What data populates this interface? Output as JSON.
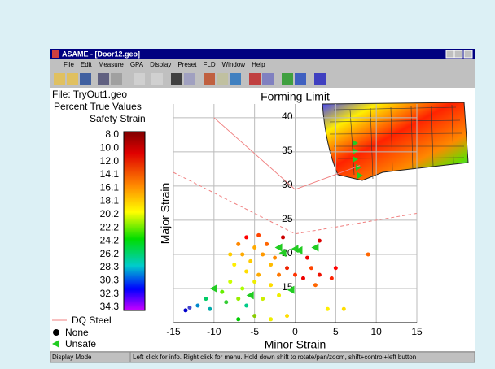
{
  "window": {
    "title": "ASAME - [Door12.geo]"
  },
  "menu": {
    "items": [
      "File",
      "Edit",
      "Measure",
      "GPA",
      "Display",
      "Preset",
      "FLD",
      "Window",
      "Help"
    ]
  },
  "sidebar": {
    "file": "File: TryOut1.geo",
    "mode": "Percent True Values",
    "scale_title": "Safety Strain",
    "scale_labels": [
      "8.0",
      "10.0",
      "12.0",
      "14.1",
      "16.1",
      "18.1",
      "20.2",
      "22.2",
      "24.2",
      "26.2",
      "28.3",
      "30.3",
      "32.3",
      "34.3"
    ]
  },
  "plot": {
    "title": "Forming Limit",
    "xlabel": "Minor Strain",
    "ylabel": "Major Strain",
    "xlim": [
      -15,
      15
    ],
    "ylim": [
      10,
      42
    ],
    "xticks": [
      -15,
      -10,
      -5,
      0,
      5,
      10,
      15
    ],
    "yticks": [
      15,
      20,
      25,
      30,
      35,
      40
    ],
    "curve": {
      "name": "DQ Steel",
      "color": "#f08080",
      "x": [
        -10,
        0,
        8
      ],
      "y": [
        40,
        29.5,
        33
      ],
      "dashed_x": [
        -15,
        0,
        15
      ],
      "dashed_y": [
        32,
        23,
        26
      ]
    },
    "series": [
      {
        "name": "None",
        "marker": "circle",
        "x": [
          -6,
          -4.5,
          -7,
          -5,
          -3.5,
          -8,
          -6.5,
          -4,
          -2.5,
          -5.5,
          -7.5,
          -3,
          -6,
          -4.5,
          -2,
          -1,
          0,
          1,
          1.5,
          2,
          3,
          2.5,
          4.5,
          5,
          9,
          3,
          -1.5,
          -8,
          -5,
          -3,
          -6.5,
          -9,
          -7,
          -4,
          -2,
          -8.5,
          -6,
          -11,
          -12,
          -13,
          -13.5,
          -10.5,
          -5,
          -3,
          -1,
          4,
          6,
          -7
        ],
        "y": [
          22.5,
          22.8,
          21.5,
          21,
          21.5,
          20,
          20,
          20,
          19.5,
          19,
          18.5,
          18.5,
          17.5,
          17,
          17,
          18,
          17,
          16.5,
          19.5,
          18,
          17,
          15.5,
          16.5,
          18,
          20,
          22,
          22.5,
          16,
          16,
          15.5,
          15,
          14.5,
          13.5,
          13.5,
          14,
          13,
          12.5,
          13.5,
          12.5,
          12.2,
          11.8,
          12,
          11,
          10.5,
          11,
          12,
          12,
          10.5
        ],
        "colors": [
          "#ff0000",
          "#ff4400",
          "#ff8800",
          "#ffaa00",
          "#ff6600",
          "#ffcc00",
          "#ffaa00",
          "#ff9900",
          "#ff8800",
          "#ffcc00",
          "#ffee00",
          "#ffbb00",
          "#ffdd00",
          "#ffaa00",
          "#ff7700",
          "#ee2200",
          "#ff3300",
          "#ee0000",
          "#ee0000",
          "#ff4400",
          "#ee1100",
          "#ff6600",
          "#ff2200",
          "#ff0000",
          "#ff6600",
          "#dd0000",
          "#cc0000",
          "#ccff00",
          "#eeee00",
          "#ffdd00",
          "#aaff00",
          "#66ee00",
          "#99ee00",
          "#ccee00",
          "#eeee00",
          "#33cc33",
          "#00cc88",
          "#00cc66",
          "#0088cc",
          "#4444cc",
          "#0000cc",
          "#00aaaa",
          "#88cc00",
          "#eeee00",
          "#ffdd00",
          "#ffee00",
          "#ffdd00",
          "#00cc00"
        ]
      },
      {
        "name": "Unsafe",
        "marker": "triangle",
        "color": "#22cc22",
        "x": [
          -2,
          -1.5,
          0,
          0.5,
          2.5,
          -10,
          -5.5,
          -0.5
        ],
        "y": [
          21,
          20.2,
          20.8,
          20.6,
          21,
          15,
          14,
          14.8
        ]
      }
    ]
  },
  "status": {
    "mode": "Display Mode",
    "hint": "Left click for info.  Right click for menu.  Hold down shift to rotate/pan/zoom, shift+control+left button"
  }
}
